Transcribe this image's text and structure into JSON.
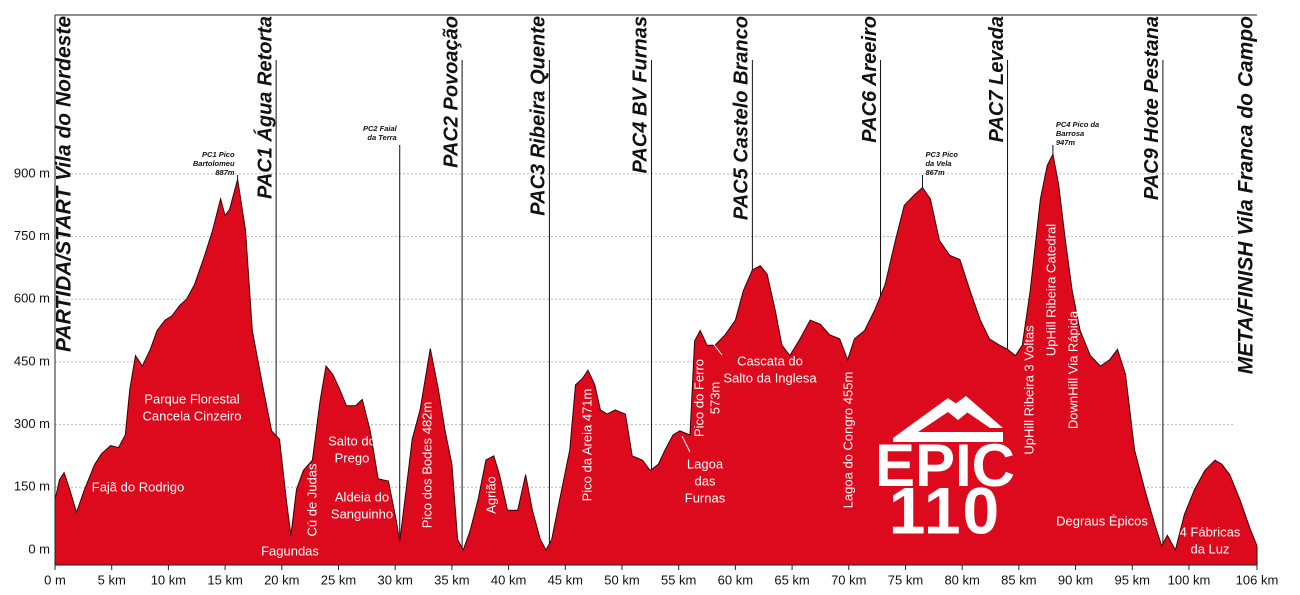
{
  "chart_data": {
    "type": "area",
    "color": "#dc0a1c",
    "grid": true,
    "xlim": [
      0,
      106
    ],
    "ylim": [
      -36,
      1280
    ],
    "xticks": [
      {
        "value": 0,
        "label": "0 m"
      },
      {
        "value": 5,
        "label": "5 km"
      },
      {
        "value": 10,
        "label": "10 km"
      },
      {
        "value": 15,
        "label": "15 km"
      },
      {
        "value": 20,
        "label": "20 km"
      },
      {
        "value": 25,
        "label": "25 km"
      },
      {
        "value": 30,
        "label": "30 km"
      },
      {
        "value": 35,
        "label": "35 km"
      },
      {
        "value": 40,
        "label": "40 km"
      },
      {
        "value": 45,
        "label": "45 km"
      },
      {
        "value": 50,
        "label": "50 km"
      },
      {
        "value": 55,
        "label": "55 km"
      },
      {
        "value": 60,
        "label": "60 km"
      },
      {
        "value": 65,
        "label": "65 km"
      },
      {
        "value": 70,
        "label": "70 km"
      },
      {
        "value": 75,
        "label": "75 km"
      },
      {
        "value": 80,
        "label": "80 km"
      },
      {
        "value": 85,
        "label": "85 km"
      },
      {
        "value": 90,
        "label": "90 km"
      },
      {
        "value": 95,
        "label": "95 km"
      },
      {
        "value": 100,
        "label": "100 km"
      },
      {
        "value": 106,
        "label": "106 km"
      }
    ],
    "yticks": [
      {
        "value": 0,
        "label": "0 m"
      },
      {
        "value": 150,
        "label": "150 m"
      },
      {
        "value": 300,
        "label": "300 m"
      },
      {
        "value": 450,
        "label": "450 m"
      },
      {
        "value": 600,
        "label": "600 m"
      },
      {
        "value": 750,
        "label": "750 m"
      },
      {
        "value": 900,
        "label": "900 m"
      }
    ],
    "x": [
      0,
      0.4,
      0.8,
      1.3,
      1.9,
      2.6,
      3.5,
      4.1,
      4.9,
      5.6,
      6.2,
      6.6,
      7.1,
      7.7,
      8.4,
      9.0,
      9.7,
      10.3,
      11.0,
      11.6,
      12.3,
      13.2,
      13.9,
      14.6,
      15.0,
      15.4,
      16.1,
      16.8,
      17.4,
      18.3,
      19.1,
      19.8,
      20.4,
      20.8,
      21.3,
      21.9,
      22.7,
      23.4,
      23.9,
      24.5,
      25.1,
      25.7,
      26.5,
      27.1,
      27.8,
      28.5,
      29.4,
      30.1,
      30.4,
      30.9,
      31.5,
      32.2,
      33.1,
      33.8,
      34.4,
      35.0,
      35.5,
      36.0,
      36.6,
      37.3,
      38.0,
      38.7,
      39.2,
      39.9,
      40.8,
      41.5,
      42.1,
      42.8,
      43.3,
      43.8,
      44.5,
      45.4,
      45.9,
      46.5,
      47.0,
      47.6,
      48.1,
      48.7,
      49.4,
      50.3,
      50.9,
      51.8,
      52.5,
      53.2,
      53.8,
      54.5,
      55.1,
      56.0,
      56.4,
      56.9,
      57.5,
      58.2,
      59.1,
      60.0,
      60.7,
      61.5,
      62.2,
      62.8,
      63.5,
      64.1,
      64.8,
      65.7,
      66.6,
      67.5,
      68.3,
      69.2,
      69.9,
      70.5,
      71.4,
      72.3,
      73.2,
      74.1,
      74.9,
      75.8,
      76.5,
      77.2,
      78.0,
      78.9,
      79.8,
      80.7,
      81.6,
      82.4,
      83.3,
      84.0,
      84.7,
      85.3,
      86.0,
      86.9,
      87.5,
      88.0,
      88.5,
      89.1,
      89.7,
      90.4,
      91.3,
      92.2,
      93.0,
      93.7,
      94.4,
      95.2,
      96.1,
      97.0,
      97.6,
      98.1,
      98.8,
      99.6,
      100.5,
      101.4,
      102.3,
      102.9,
      103.6,
      104.5,
      105.4,
      106.0
    ],
    "values": [
      120,
      168,
      185,
      145,
      90,
      145,
      205,
      230,
      250,
      245,
      275,
      385,
      465,
      440,
      480,
      525,
      550,
      560,
      585,
      600,
      635,
      705,
      765,
      840,
      800,
      815,
      887,
      765,
      525,
      395,
      285,
      265,
      120,
      35,
      145,
      190,
      215,
      360,
      440,
      420,
      385,
      345,
      345,
      360,
      285,
      170,
      165,
      70,
      20,
      130,
      265,
      335,
      482,
      385,
      285,
      205,
      25,
      0,
      45,
      120,
      215,
      225,
      180,
      95,
      95,
      180,
      95,
      25,
      0,
      25,
      120,
      240,
      395,
      410,
      430,
      395,
      335,
      325,
      335,
      325,
      225,
      215,
      190,
      205,
      240,
      275,
      285,
      275,
      500,
      525,
      490,
      490,
      515,
      550,
      620,
      670,
      680,
      660,
      575,
      490,
      465,
      505,
      550,
      540,
      515,
      505,
      455,
      505,
      525,
      575,
      635,
      740,
      825,
      850,
      867,
      840,
      740,
      705,
      695,
      620,
      550,
      505,
      490,
      480,
      465,
      490,
      620,
      840,
      920,
      947,
      875,
      740,
      620,
      525,
      465,
      440,
      455,
      480,
      420,
      240,
      145,
      60,
      10,
      35,
      0,
      85,
      145,
      190,
      215,
      205,
      180,
      120,
      50,
      10
    ],
    "checkpoints": [
      {
        "label": "PARTIDA/START Vila do Nordeste",
        "km": 0
      },
      {
        "label": "PAC1 Água Retorta",
        "km": 19.5
      },
      {
        "label": "PAC2 Povoação",
        "km": 35.9
      },
      {
        "label": "PAC3 Ribeira Quente",
        "km": 43.6
      },
      {
        "label": "PAC4 BV Furnas",
        "km": 52.6
      },
      {
        "label": "PAC5 Castelo Branco",
        "km": 61.5
      },
      {
        "label": "PAC6 Areeiro",
        "km": 72.8
      },
      {
        "label": "PAC7 Levada",
        "km": 84.0
      },
      {
        "label": "PAC9 Hote Pestana",
        "km": 97.7
      },
      {
        "label": "META/FINISH Vila Franca do Campo",
        "km": 106
      }
    ],
    "peaks": [
      {
        "lines": [
          "PC1 Pico",
          "Bartolomeu",
          "887m"
        ],
        "km": 16.1
      },
      {
        "lines": [
          "PC2 Faial",
          "da Terra"
        ],
        "km": 30.4
      },
      {
        "lines": [
          "PC3 Pico",
          "da Vela",
          "867m"
        ],
        "km": 76.5
      },
      {
        "lines": [
          "PC4 Pico da",
          "Barrosa",
          "947m"
        ],
        "km": 88.0
      }
    ],
    "annotations": [
      [
        "Fajã do Rodrigo"
      ],
      [
        "Parque Florestal",
        "Cancela Cinzeiro"
      ],
      [
        "Fagundas"
      ],
      [
        "Cú de Judas"
      ],
      [
        "Salto do",
        "Prego"
      ],
      [
        "Aldeia do",
        "Sanguinho"
      ],
      [
        "Pico dos Bodes 482m"
      ],
      [
        "Agrião"
      ],
      [
        "Pico da Areia 471m"
      ],
      [
        "Pico do Ferro",
        "573m"
      ],
      [
        "Lagoa",
        "das",
        "Furnas"
      ],
      [
        "Cascata do",
        "Salto da Inglesa"
      ],
      [
        "Lagoa do Congro 455m"
      ],
      [
        "UpHill Ribeira 3 Voltas"
      ],
      [
        "UpHill Ribeira Catedral"
      ],
      [
        "DownHill Via Rápida"
      ],
      [
        "Degraus Épicos"
      ],
      [
        "4 Fábricas",
        "da Luz"
      ]
    ]
  },
  "logo": {
    "line1": "EPIC",
    "line2": "110"
  }
}
